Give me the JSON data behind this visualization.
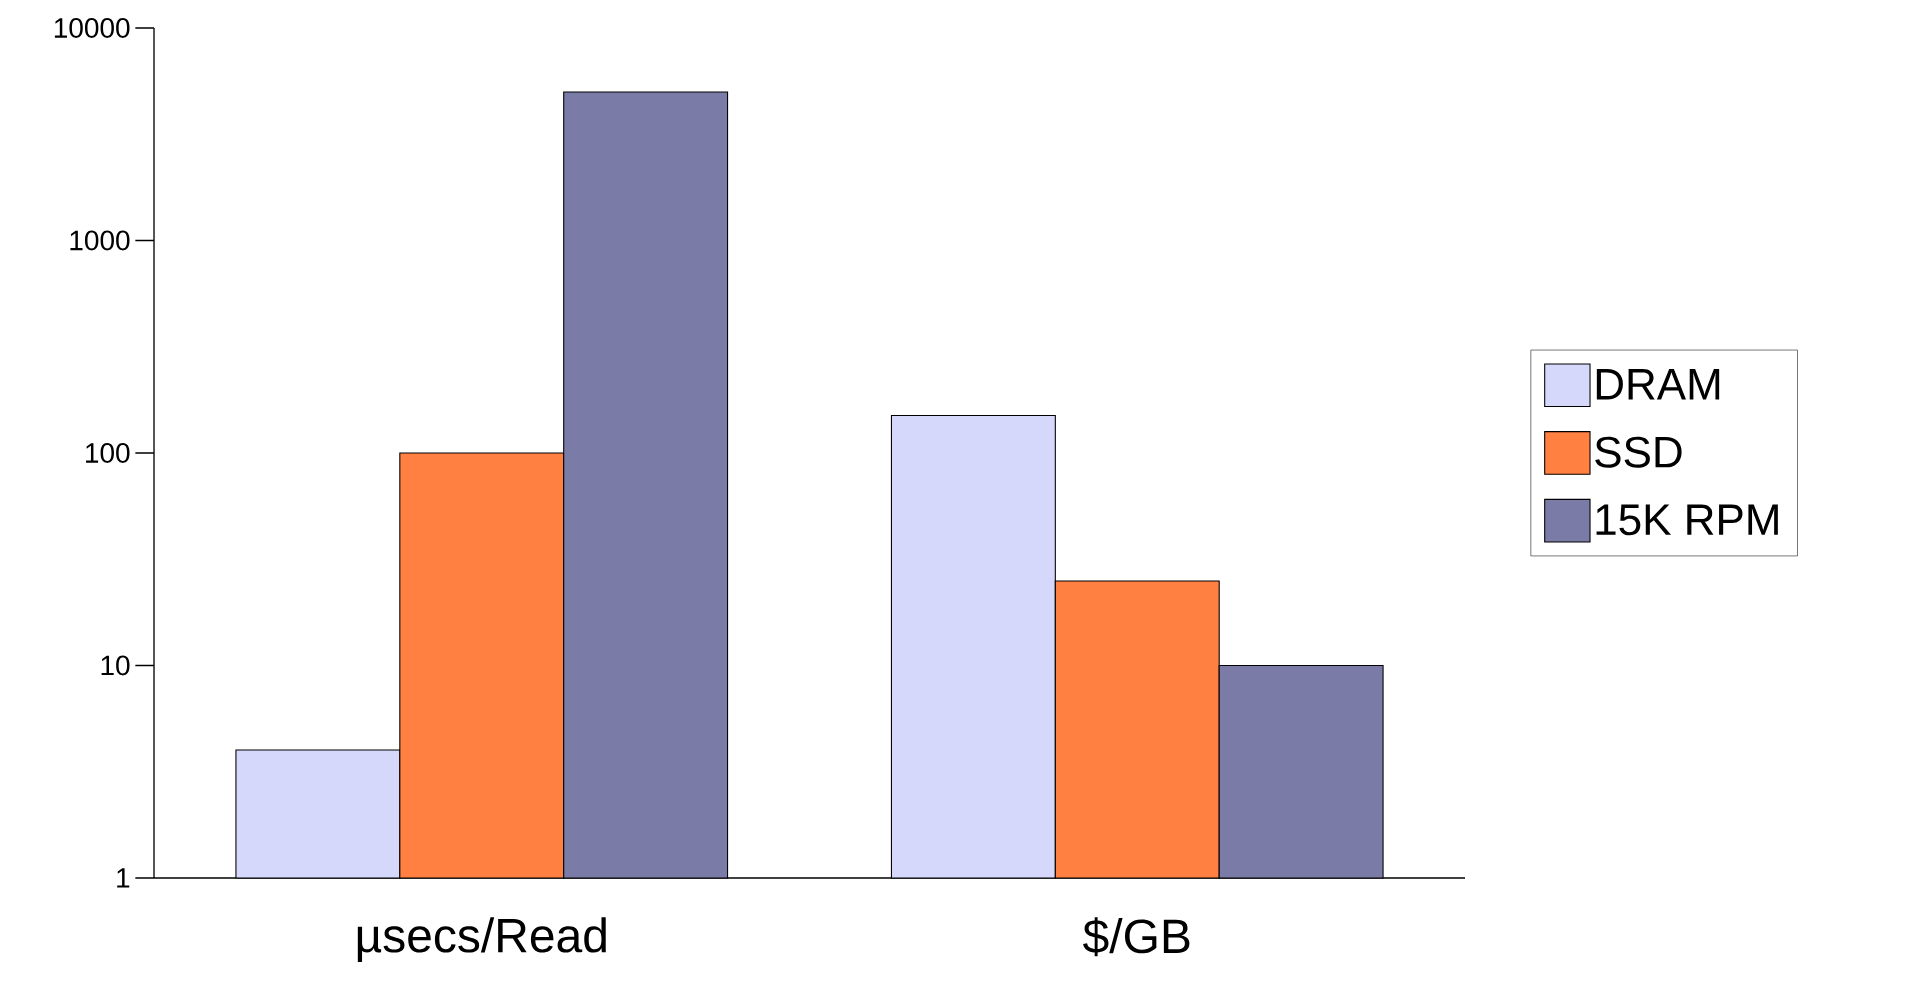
{
  "chart_data": {
    "type": "bar",
    "categories": [
      "µsecs/Read",
      "$/GB"
    ],
    "series": [
      {
        "name": "DRAM",
        "color": "#d5d7fb",
        "values": [
          4,
          150
        ]
      },
      {
        "name": "SSD",
        "color": "#ff8040",
        "values": [
          100,
          25
        ]
      },
      {
        "name": "15K RPM",
        "color": "#7b7ba8",
        "values": [
          5000,
          10
        ]
      }
    ],
    "log": "y",
    "ylim": [
      1,
      10000
    ],
    "yticks": [
      1,
      10,
      100,
      1000,
      10000
    ],
    "grid": false,
    "legend": "right"
  }
}
